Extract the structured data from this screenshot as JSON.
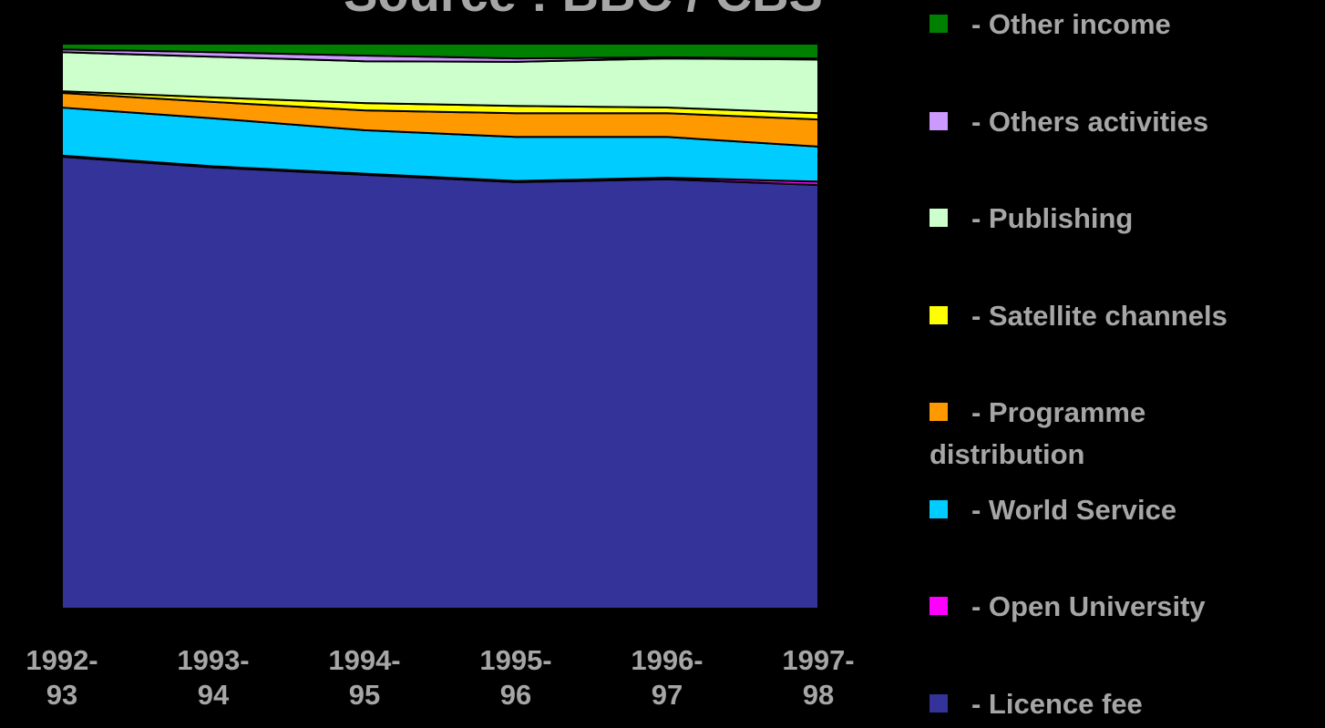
{
  "chart_data": {
    "type": "stacked_area",
    "title": "Source : BBC / CBS",
    "categories": [
      "1992-93",
      "1993-94",
      "1994-95",
      "1995-96",
      "1996-97",
      "1997-98"
    ],
    "ylim": [
      0,
      100
    ],
    "series": [
      {
        "name": "- Licence fee",
        "color": "#333399",
        "values": [
          80.0,
          78.1,
          76.8,
          75.5,
          76.0,
          75.0
        ]
      },
      {
        "name": "- Open University",
        "color": "#ff00ff",
        "values": [
          0.2,
          0.2,
          0.2,
          0.2,
          0.3,
          0.6
        ]
      },
      {
        "name": "- World Service",
        "color": "#00ccff",
        "values": [
          8.5,
          8.5,
          7.7,
          7.8,
          7.2,
          6.2
        ]
      },
      {
        "name": "- Programme distribution",
        "color": "#ff9900",
        "values": [
          2.6,
          2.9,
          3.5,
          4.2,
          4.2,
          4.8
        ]
      },
      {
        "name": "- Satellite channels",
        "color": "#ffff00",
        "values": [
          0.3,
          0.8,
          1.3,
          1.3,
          1.0,
          1.1
        ]
      },
      {
        "name": "- Publishing",
        "color": "#ccffcc",
        "values": [
          6.9,
          7.2,
          7.4,
          7.8,
          8.7,
          9.5
        ]
      },
      {
        "name": "- Others activities",
        "color": "#cc99ff",
        "values": [
          0.5,
          0.8,
          1.0,
          0.6,
          0.2,
          0.2
        ]
      },
      {
        "name": "- Other income",
        "color": "#008000",
        "values": [
          1.0,
          1.5,
          2.1,
          2.6,
          2.4,
          2.6
        ]
      }
    ]
  }
}
